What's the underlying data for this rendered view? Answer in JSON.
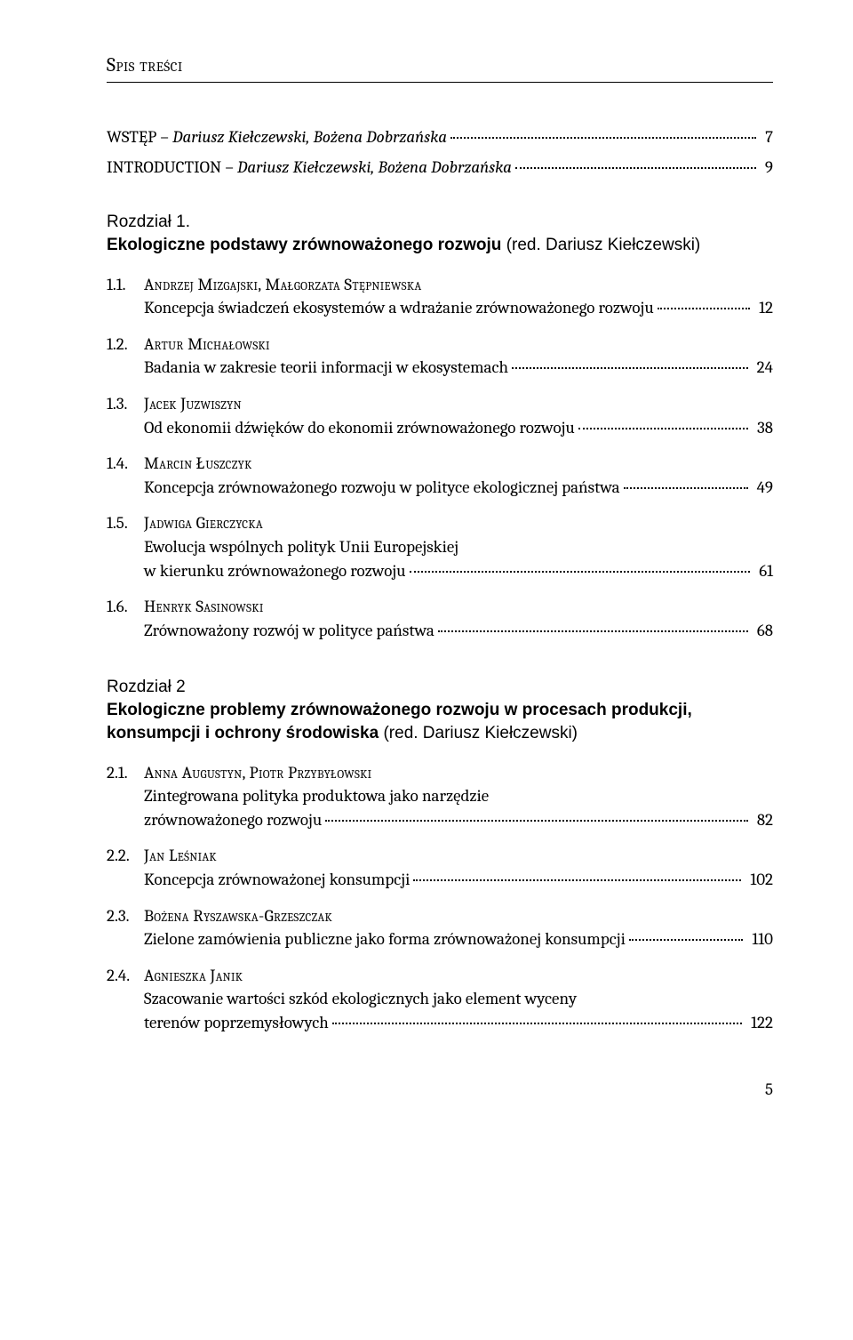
{
  "header": {
    "title": "Spis treści"
  },
  "intros": [
    {
      "prefix": "WSTĘP – ",
      "authors": "Dariusz Kiełczewski, Bożena Dobrzańska",
      "page": "7"
    },
    {
      "prefix": "INTRODUCTION – ",
      "authors": "Dariusz Kiełczewski, Bożena Dobrzańska",
      "page": "9"
    }
  ],
  "chapter1": {
    "label": "Rozdział 1.",
    "title_bold": "Ekologiczne podstawy zrównoważonego rozwoju",
    "editor": " (red. Dariusz Kiełczewski)"
  },
  "entries1": [
    {
      "num": "1.1.",
      "author": "Andrzej Mizgajski, Małgorzata Stępniewska",
      "title_lines": [
        "Koncepcja świadczeń ekosystemów a wdrażanie zrównoważonego rozwoju"
      ],
      "page": "12"
    },
    {
      "num": "1.2.",
      "author": "Artur Michałowski",
      "title_lines": [
        "Badania w zakresie teorii informacji w ekosystemach"
      ],
      "page": "24"
    },
    {
      "num": "1.3.",
      "author": "Jacek Juzwiszyn",
      "title_lines": [
        "Od ekonomii dźwięków do ekonomii zrównoważonego rozwoju"
      ],
      "page": "38"
    },
    {
      "num": "1.4.",
      "author": "Marcin Łuszczyk",
      "title_lines": [
        "Koncepcja zrównoważonego rozwoju w polityce ekologicznej państwa"
      ],
      "page": "49"
    },
    {
      "num": "1.5.",
      "author": "Jadwiga Gierczycka",
      "title_lines": [
        "Ewolucja wspólnych polityk Unii Europejskiej",
        "w kierunku zrównoważonego rozwoju"
      ],
      "page": "61"
    },
    {
      "num": "1.6.",
      "author": "Henryk Sasinowski",
      "title_lines": [
        "Zrównoważony rozwój w polityce państwa"
      ],
      "page": "68"
    }
  ],
  "chapter2": {
    "label": "Rozdział 2",
    "title_bold": "Ekologiczne problemy zrównoważonego rozwoju w procesach produkcji, konsumpcji i ochrony środowiska",
    "editor": " (red. Dariusz Kiełczewski)"
  },
  "entries2": [
    {
      "num": "2.1.",
      "author": "Anna Augustyn, Piotr Przybyłowski",
      "title_lines": [
        "Zintegrowana polityka produktowa jako narzędzie",
        "zrównoważonego rozwoju"
      ],
      "page": "82"
    },
    {
      "num": "2.2.",
      "author": "Jan Leśniak",
      "title_lines": [
        "Koncepcja zrównoważonej konsumpcji"
      ],
      "page": "102"
    },
    {
      "num": "2.3.",
      "author": "Bożena Ryszawska-Grzeszczak",
      "title_lines": [
        "Zielone zamówienia publiczne jako forma zrównoważonej konsumpcji"
      ],
      "page": "110"
    },
    {
      "num": "2.4.",
      "author": "Agnieszka Janik",
      "title_lines": [
        "Szacowanie wartości szkód ekologicznych jako element wyceny",
        "terenów poprzemysłowych"
      ],
      "page": "122"
    }
  ],
  "footer": {
    "page_number": "5"
  }
}
